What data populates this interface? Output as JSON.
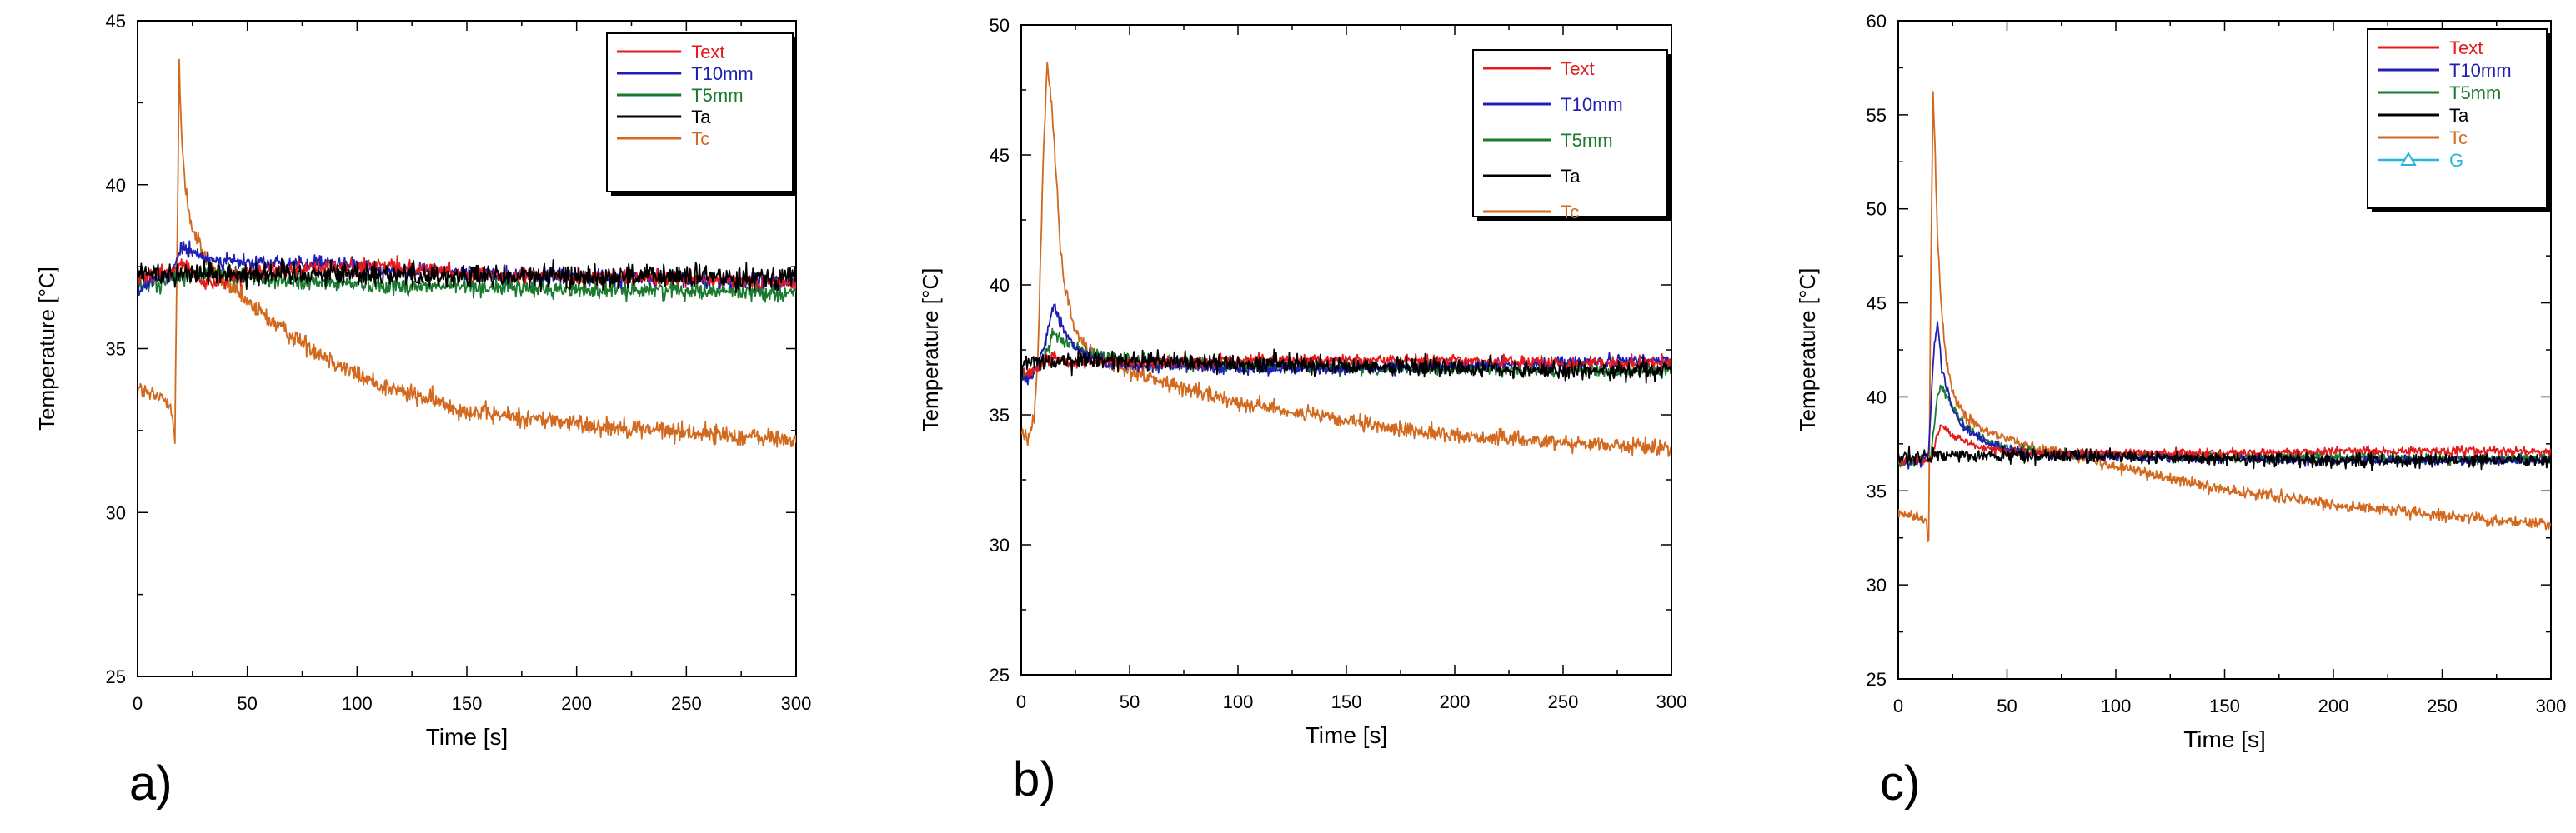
{
  "figure": {
    "panels": [
      "a)",
      "b)",
      "c)"
    ]
  },
  "chart_data": [
    {
      "type": "line",
      "panel_label": "a)",
      "xlabel": "Time [s]",
      "ylabel": "Temperature [°C]",
      "xlim": [
        0,
        300
      ],
      "ylim": [
        25,
        45
      ],
      "xticks": [
        0,
        50,
        100,
        150,
        200,
        250,
        300
      ],
      "yticks": [
        25,
        30,
        35,
        40,
        45
      ],
      "legend": [
        "Text",
        "T10mm",
        "T5mm",
        "Ta",
        "Tc"
      ],
      "series": [
        {
          "name": "Text",
          "color": "#e41a1c",
          "x": [
            0,
            5,
            10,
            15,
            17,
            20,
            25,
            30,
            35,
            40,
            45,
            50,
            60,
            80,
            100,
            120,
            150,
            200,
            250,
            300
          ],
          "y": [
            37.2,
            37.2,
            37.3,
            37.3,
            37.4,
            37.6,
            37.3,
            37.0,
            37.0,
            37.1,
            37.2,
            37.3,
            37.4,
            37.5,
            37.5,
            37.5,
            37.3,
            37.2,
            37.1,
            37.0
          ]
        },
        {
          "name": "T10mm",
          "color": "#1f1fb4",
          "x": [
            0,
            5,
            10,
            15,
            17,
            20,
            25,
            30,
            35,
            40,
            50,
            60,
            80,
            100,
            120,
            150,
            200,
            250,
            300
          ],
          "y": [
            36.8,
            37.0,
            37.1,
            37.2,
            37.6,
            38.1,
            37.9,
            37.8,
            37.7,
            37.7,
            37.6,
            37.6,
            37.6,
            37.5,
            37.4,
            37.3,
            37.2,
            37.1,
            37.0
          ]
        },
        {
          "name": "T5mm",
          "color": "#1a7a2e",
          "x": [
            0,
            10,
            15,
            20,
            30,
            40,
            50,
            60,
            80,
            100,
            120,
            150,
            200,
            250,
            300
          ],
          "y": [
            36.9,
            37.0,
            37.1,
            37.2,
            37.3,
            37.3,
            37.2,
            37.1,
            37.0,
            37.0,
            36.9,
            36.9,
            36.8,
            36.8,
            36.7
          ]
        },
        {
          "name": "Ta",
          "color": "#000000",
          "x": [
            0,
            50,
            100,
            150,
            200,
            250,
            300
          ],
          "y": [
            37.3,
            37.3,
            37.3,
            37.2,
            37.2,
            37.2,
            37.2
          ]
        },
        {
          "name": "Tc",
          "color": "#d2691e",
          "x": [
            0,
            5,
            10,
            15,
            17,
            19,
            20,
            22,
            25,
            30,
            35,
            40,
            50,
            60,
            70,
            80,
            90,
            100,
            110,
            120,
            130,
            140,
            150,
            160,
            175,
            190,
            200,
            220,
            240,
            260,
            280,
            300
          ],
          "y": [
            33.8,
            33.6,
            33.5,
            33.4,
            32.2,
            43.6,
            41.5,
            39.8,
            38.6,
            37.9,
            37.4,
            37.0,
            36.4,
            35.9,
            35.4,
            35.0,
            34.6,
            34.2,
            33.9,
            33.7,
            33.5,
            33.3,
            33.1,
            33.0,
            32.9,
            32.8,
            32.7,
            32.6,
            32.5,
            32.4,
            32.3,
            32.2
          ]
        }
      ]
    },
    {
      "type": "line",
      "panel_label": "b)",
      "xlabel": "Time [s]",
      "ylabel": "Temperature [°C]",
      "xlim": [
        0,
        300
      ],
      "ylim": [
        25,
        50
      ],
      "xticks": [
        0,
        50,
        100,
        150,
        200,
        250,
        300
      ],
      "yticks": [
        25,
        30,
        35,
        40,
        45,
        50
      ],
      "legend": [
        "Text",
        "T10mm",
        "T5mm",
        "Ta",
        "Tc"
      ],
      "series": [
        {
          "name": "Text",
          "color": "#e41a1c",
          "x": [
            0,
            5,
            10,
            15,
            20,
            30,
            40,
            50,
            70,
            100,
            150,
            200,
            250,
            300
          ],
          "y": [
            36.6,
            36.7,
            37.0,
            37.3,
            37.1,
            37.0,
            37.0,
            37.0,
            37.0,
            37.1,
            37.1,
            37.1,
            37.0,
            37.0
          ]
        },
        {
          "name": "T10mm",
          "color": "#1f1fb4",
          "x": [
            0,
            5,
            10,
            12,
            15,
            20,
            25,
            30,
            40,
            50,
            70,
            100,
            150,
            200,
            250,
            300
          ],
          "y": [
            36.4,
            36.5,
            37.5,
            38.2,
            39.2,
            38.2,
            37.6,
            37.3,
            37.0,
            36.9,
            36.9,
            36.8,
            36.8,
            36.9,
            37.0,
            37.1
          ]
        },
        {
          "name": "T5mm",
          "color": "#1a7a2e",
          "x": [
            0,
            5,
            10,
            15,
            20,
            30,
            40,
            50,
            70,
            100,
            150,
            200,
            250,
            300
          ],
          "y": [
            36.5,
            36.6,
            37.0,
            38.2,
            37.8,
            37.4,
            37.2,
            37.1,
            37.0,
            36.9,
            36.8,
            36.8,
            36.7,
            36.7
          ]
        },
        {
          "name": "Ta",
          "color": "#000000",
          "x": [
            0,
            50,
            100,
            150,
            200,
            250,
            300
          ],
          "y": [
            37.0,
            37.1,
            37.0,
            36.9,
            36.8,
            36.7,
            36.7
          ]
        },
        {
          "name": "Tc",
          "color": "#d2691e",
          "x": [
            0,
            3,
            6,
            8,
            10,
            12,
            14,
            16,
            18,
            20,
            25,
            30,
            40,
            50,
            60,
            80,
            100,
            120,
            140,
            160,
            180,
            200,
            220,
            240,
            260,
            280,
            300
          ],
          "y": [
            34.5,
            34.0,
            34.8,
            38.0,
            44.5,
            48.5,
            47.0,
            44.5,
            41.5,
            39.8,
            38.3,
            37.5,
            37.0,
            36.7,
            36.4,
            35.9,
            35.5,
            35.2,
            34.9,
            34.6,
            34.4,
            34.2,
            34.1,
            34.0,
            33.9,
            33.8,
            33.7
          ]
        }
      ]
    },
    {
      "type": "line",
      "panel_label": "c)",
      "xlabel": "Time [s]",
      "ylabel": "Temperature [°C]",
      "xlim": [
        0,
        300
      ],
      "ylim": [
        25,
        60
      ],
      "xticks": [
        0,
        50,
        100,
        150,
        200,
        250,
        300
      ],
      "yticks": [
        25,
        30,
        35,
        40,
        45,
        50,
        55,
        60
      ],
      "legend": [
        "Text",
        "T10mm",
        "T5mm",
        "Ta",
        "Tc",
        "G"
      ],
      "series": [
        {
          "name": "Text",
          "color": "#e41a1c",
          "x": [
            0,
            10,
            15,
            18,
            20,
            25,
            30,
            40,
            50,
            70,
            100,
            150,
            200,
            250,
            300
          ],
          "y": [
            36.6,
            36.6,
            36.7,
            38.0,
            38.5,
            38.0,
            37.6,
            37.3,
            37.1,
            37.0,
            37.0,
            37.0,
            37.1,
            37.1,
            37.1
          ]
        },
        {
          "name": "T10mm",
          "color": "#1f1fb4",
          "x": [
            0,
            10,
            14,
            16,
            18,
            20,
            25,
            30,
            40,
            50,
            70,
            100,
            150,
            200,
            250,
            300
          ],
          "y": [
            36.5,
            36.5,
            37.0,
            42.0,
            44.0,
            41.5,
            39.3,
            38.4,
            37.6,
            37.2,
            36.9,
            36.8,
            36.7,
            36.6,
            36.6,
            36.6
          ]
        },
        {
          "name": "T5mm",
          "color": "#1a7a2e",
          "x": [
            0,
            10,
            15,
            18,
            20,
            25,
            30,
            40,
            50,
            70,
            100,
            150,
            200,
            250,
            300
          ],
          "y": [
            36.6,
            36.6,
            36.8,
            40.0,
            40.5,
            39.5,
            38.5,
            37.7,
            37.3,
            37.0,
            36.9,
            36.8,
            36.8,
            36.7,
            36.7
          ]
        },
        {
          "name": "Ta",
          "color": "#000000",
          "x": [
            0,
            50,
            100,
            150,
            200,
            250,
            300
          ],
          "y": [
            36.8,
            36.9,
            36.8,
            36.7,
            36.6,
            36.6,
            36.6
          ]
        },
        {
          "name": "Tc",
          "color": "#d2691e",
          "x": [
            0,
            5,
            10,
            13,
            14,
            15,
            16,
            17,
            18,
            20,
            22,
            25,
            30,
            40,
            50,
            60,
            80,
            100,
            120,
            140,
            160,
            180,
            200,
            220,
            240,
            260,
            280,
            300
          ],
          "y": [
            33.8,
            33.7,
            33.6,
            33.5,
            32.2,
            47.0,
            56.0,
            53.0,
            48.5,
            44.5,
            42.0,
            40.3,
            39.0,
            38.2,
            37.8,
            37.4,
            36.8,
            36.3,
            35.8,
            35.3,
            34.9,
            34.6,
            34.3,
            34.0,
            33.8,
            33.6,
            33.4,
            33.2
          ]
        },
        {
          "name": "G",
          "color": "#29b6d6",
          "x": [],
          "y": []
        }
      ]
    }
  ]
}
